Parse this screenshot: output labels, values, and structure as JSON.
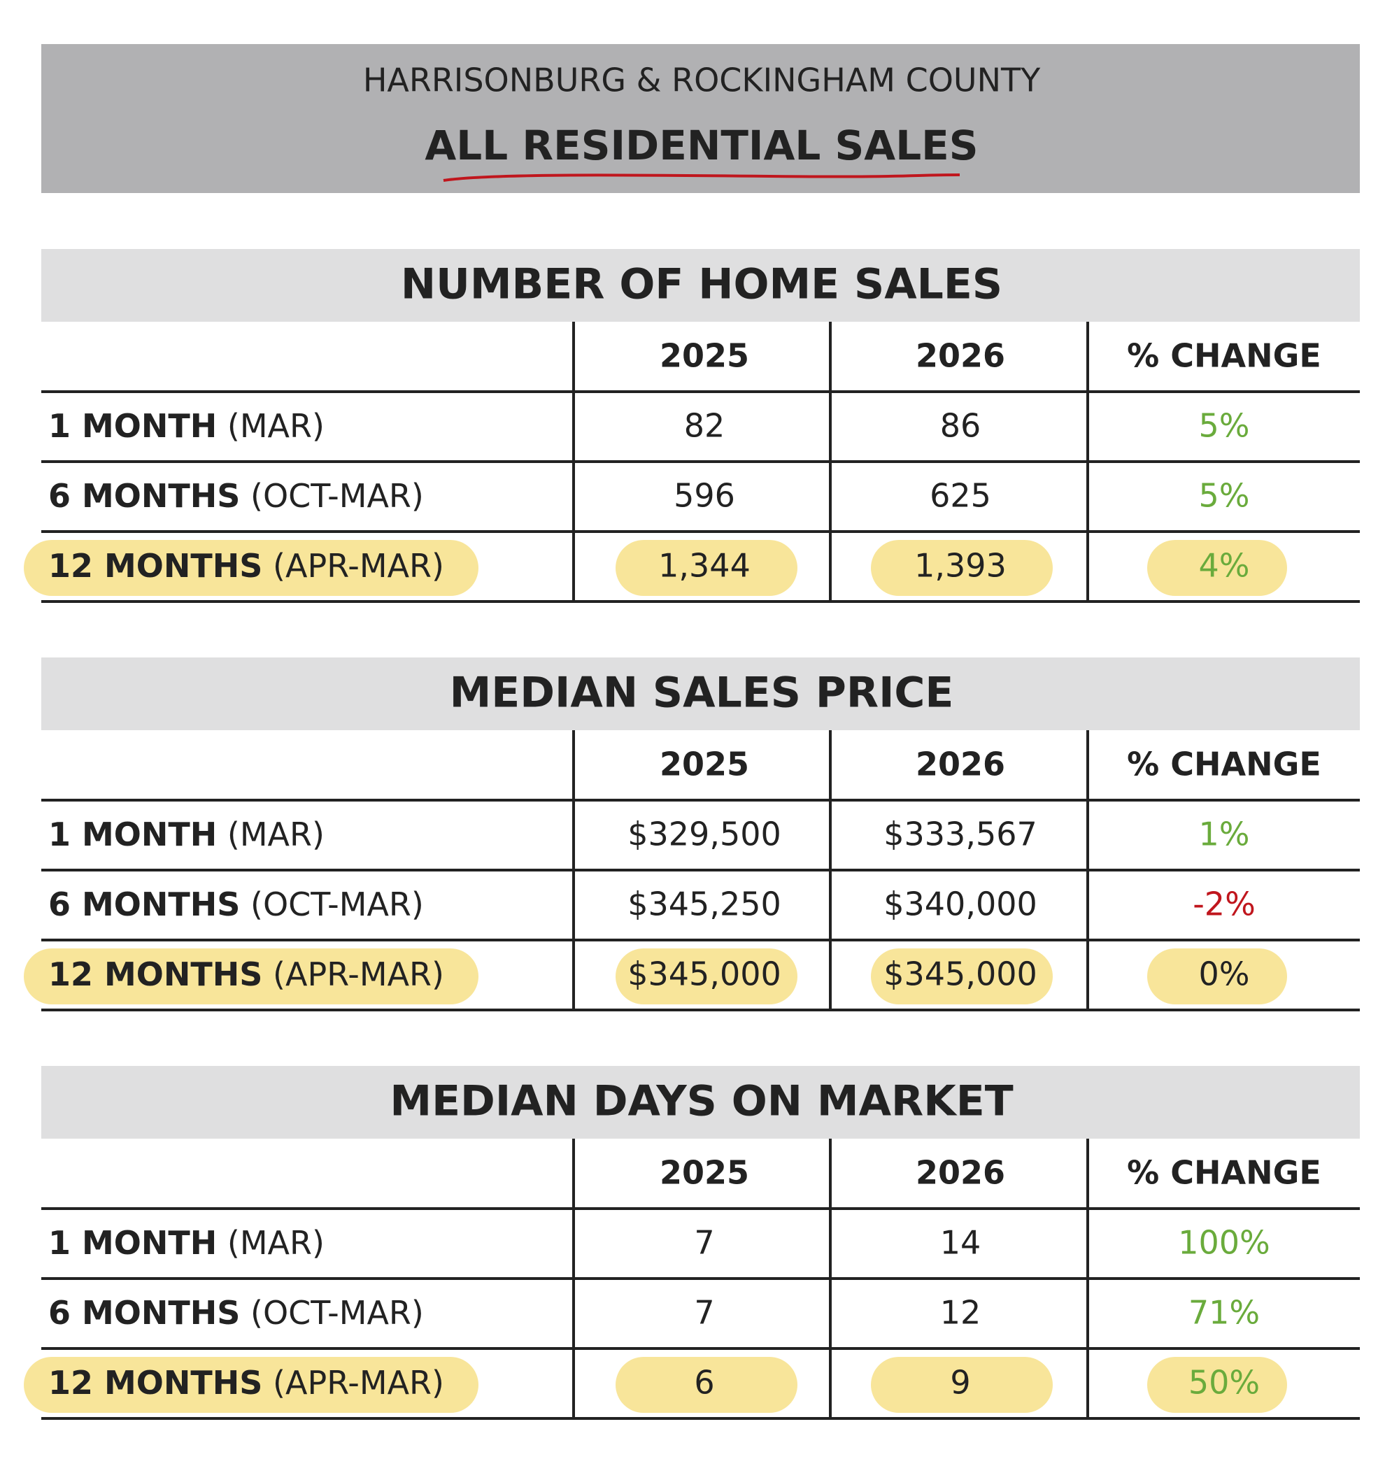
{
  "header": {
    "subtitle": "HARRISONBURG & ROCKINGHAM COUNTY",
    "title": "ALL RESIDENTIAL SALES"
  },
  "sections": [
    {
      "title": "NUMBER OF HOME SALES",
      "columns": [
        "2025",
        "2026",
        "% CHANGE"
      ],
      "rows": [
        {
          "label_bold": "1 MONTH",
          "label_rest": "(MAR)",
          "cells": [
            "82",
            "86",
            "5%"
          ]
        },
        {
          "label_bold": "6 MONTHS",
          "label_rest": "(OCT-MAR)",
          "cells": [
            "596",
            "625",
            "5%"
          ]
        },
        {
          "label_bold": "12 MONTHS",
          "label_rest": "(APR-MAR)",
          "cells": [
            "1,344",
            "1,393",
            "4%"
          ],
          "highlighted": true
        }
      ]
    },
    {
      "title": "MEDIAN SALES PRICE",
      "columns": [
        "2025",
        "2026",
        "% CHANGE"
      ],
      "rows": [
        {
          "label_bold": "1 MONTH",
          "label_rest": "(MAR)",
          "cells": [
            "$329,500",
            "$333,567",
            "1%"
          ]
        },
        {
          "label_bold": "6 MONTHS",
          "label_rest": "(OCT-MAR)",
          "cells": [
            "$345,250",
            "$340,000",
            "-2%"
          ]
        },
        {
          "label_bold": "12 MONTHS",
          "label_rest": "(APR-MAR)",
          "cells": [
            "$345,000",
            "$345,000",
            "0%"
          ],
          "highlighted": true
        }
      ]
    },
    {
      "title": "MEDIAN DAYS ON MARKET",
      "columns": [
        "2025",
        "2026",
        "% CHANGE"
      ],
      "rows": [
        {
          "label_bold": "1 MONTH",
          "label_rest": "(MAR)",
          "cells": [
            "7",
            "14",
            "100%"
          ]
        },
        {
          "label_bold": "6 MONTHS",
          "label_rest": "(OCT-MAR)",
          "cells": [
            "7",
            "12",
            "71%"
          ]
        },
        {
          "label_bold": "12 MONTHS",
          "label_rest": "(APR-MAR)",
          "cells": [
            "6",
            "9",
            "50%"
          ],
          "highlighted": true
        }
      ]
    }
  ]
}
